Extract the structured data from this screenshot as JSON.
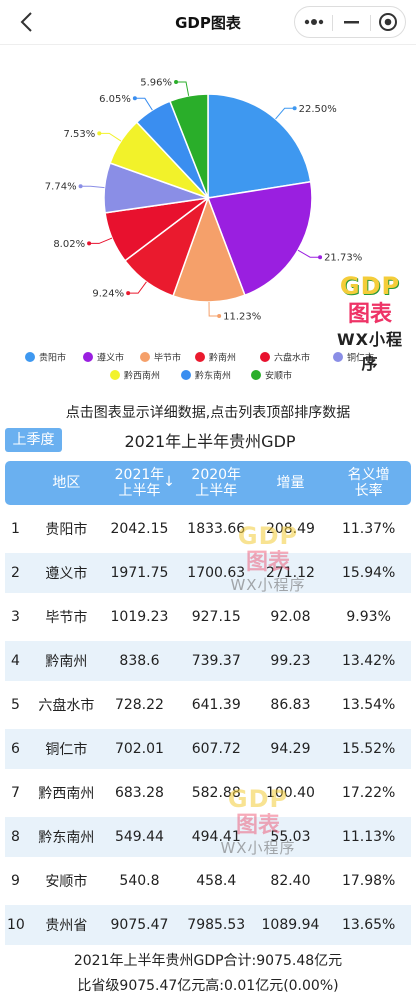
{
  "nav": {
    "title": "GDP图表"
  },
  "hint": "点击图表显示详细数据,点击列表顶部排序数据",
  "season_button": "上季度",
  "table_title": "2021年上半年贵州GDP",
  "watermark": {
    "line1": "GDP",
    "line2": "图表",
    "line3": "WX小程序"
  },
  "table": {
    "headers": [
      "地区",
      "2021年上半年",
      "2020年上半年",
      "增量",
      "名义增长率"
    ],
    "sort_arrow": "↓",
    "rows": [
      {
        "idx": "1",
        "region": "贵阳市",
        "y2021": "2042.15",
        "y2020": "1833.66",
        "inc": "208.49",
        "rate": "11.37%"
      },
      {
        "idx": "2",
        "region": "遵义市",
        "y2021": "1971.75",
        "y2020": "1700.63",
        "inc": "271.12",
        "rate": "15.94%"
      },
      {
        "idx": "3",
        "region": "毕节市",
        "y2021": "1019.23",
        "y2020": "927.15",
        "inc": "92.08",
        "rate": "9.93%"
      },
      {
        "idx": "4",
        "region": "黔南州",
        "y2021": "838.6",
        "y2020": "739.37",
        "inc": "99.23",
        "rate": "13.42%"
      },
      {
        "idx": "5",
        "region": "六盘水市",
        "y2021": "728.22",
        "y2020": "641.39",
        "inc": "86.83",
        "rate": "13.54%"
      },
      {
        "idx": "6",
        "region": "铜仁市",
        "y2021": "702.01",
        "y2020": "607.72",
        "inc": "94.29",
        "rate": "15.52%"
      },
      {
        "idx": "7",
        "region": "黔西南州",
        "y2021": "683.28",
        "y2020": "582.88",
        "inc": "100.40",
        "rate": "17.22%"
      },
      {
        "idx": "8",
        "region": "黔东南州",
        "y2021": "549.44",
        "y2020": "494.41",
        "inc": "55.03",
        "rate": "11.13%"
      },
      {
        "idx": "9",
        "region": "安顺市",
        "y2021": "540.8",
        "y2020": "458.4",
        "inc": "82.40",
        "rate": "17.98%"
      },
      {
        "idx": "10",
        "region": "贵州省",
        "y2021": "9075.47",
        "y2020": "7985.53",
        "inc": "1089.94",
        "rate": "13.65%"
      }
    ]
  },
  "summary": {
    "line1": "2021年上半年贵州GDP合计:9075.48亿元",
    "line2": "比省级9075.47亿元高:0.01亿元(0.00%)"
  },
  "chart_data": {
    "type": "pie",
    "categories": [
      "贵阳市",
      "遵义市",
      "毕节市",
      "黔南州",
      "六盘水市",
      "铜仁市",
      "黔西南州",
      "黔东南州",
      "安顺市"
    ],
    "values": [
      22.5,
      21.73,
      11.23,
      9.24,
      8.02,
      7.74,
      7.53,
      6.05,
      5.96
    ],
    "labels": [
      "22.50%",
      "21.73%",
      "11.23%",
      "9.24%",
      "8.02%",
      "7.74%",
      "7.53%",
      "6.05%",
      "5.96%"
    ],
    "colors": [
      "#3e98f0",
      "#9a1fe0",
      "#f5a06a",
      "#ea1a2e",
      "#e8112e",
      "#8a8ee6",
      "#f2f22a",
      "#3a8ef0",
      "#2aae2a"
    ],
    "legend": "bottom"
  }
}
